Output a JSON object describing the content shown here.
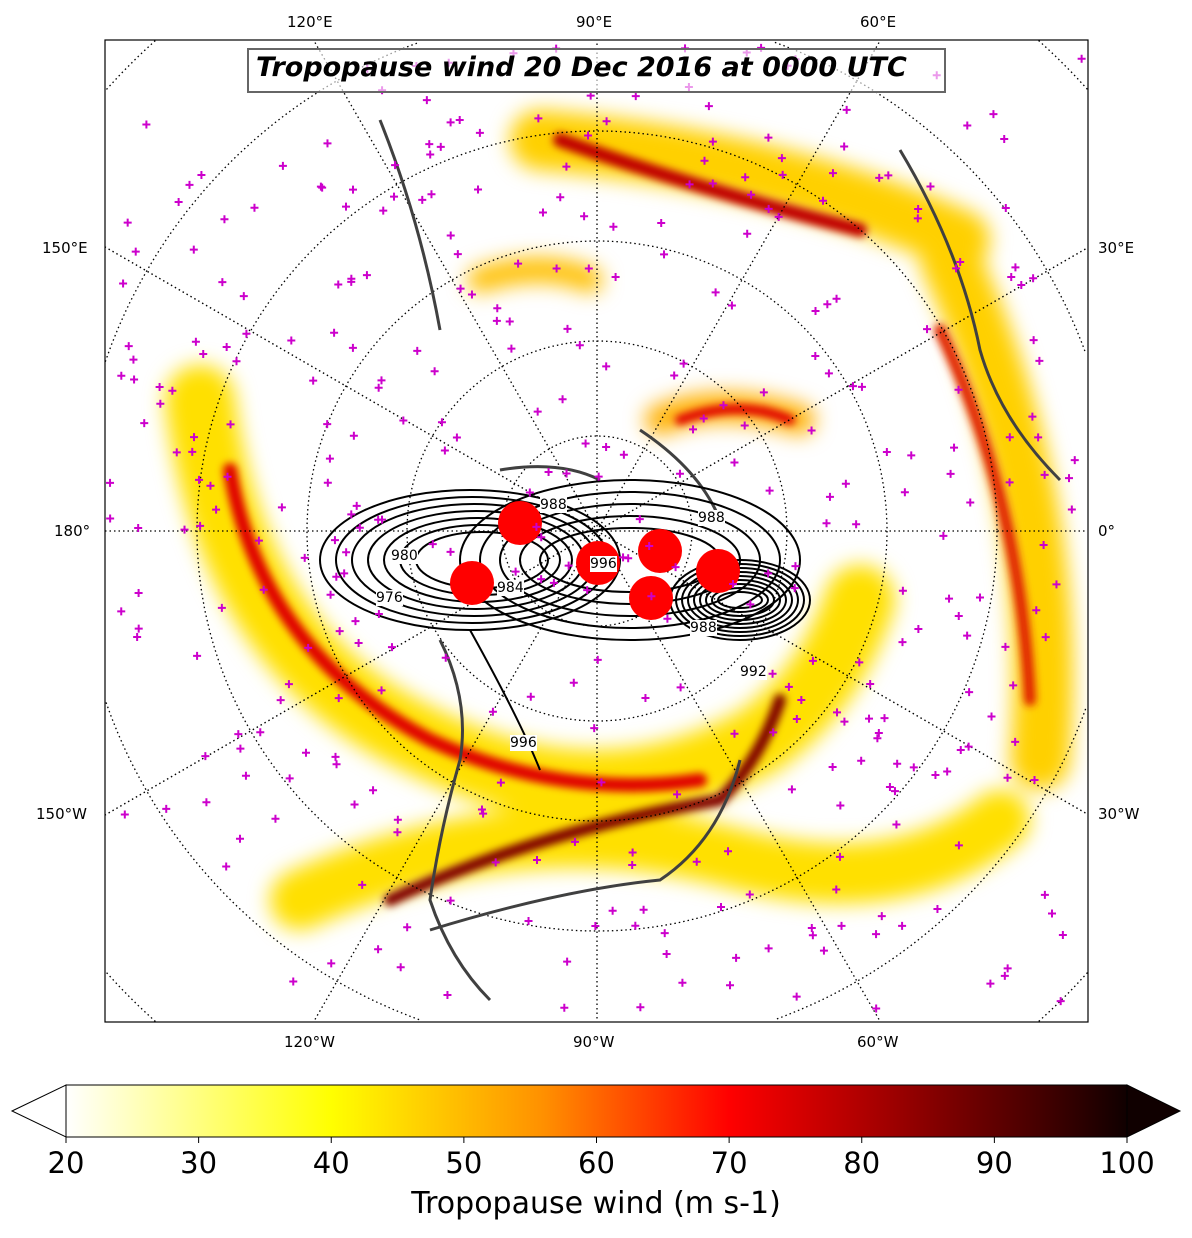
{
  "title": "Tropopause wind 20 Dec 2016 at 0000 UTC",
  "projection": "north-polar-stereographic",
  "meridian_labels": {
    "top": [
      "120°E",
      "90°E",
      "60°E"
    ],
    "bottom": [
      "120°W",
      "90°W",
      "60°W"
    ],
    "left": [
      "150°E",
      "180°",
      "150°W"
    ],
    "right": [
      "30°E",
      "0°",
      "30°W"
    ]
  },
  "contour_labels": [
    "988",
    "980",
    "976",
    "996",
    "984",
    "992",
    "988",
    "996",
    "988"
  ],
  "colorbar": {
    "label": "Tropopause wind (m s-1)",
    "ticks": [
      "20",
      "30",
      "40",
      "50",
      "60",
      "70",
      "80",
      "90",
      "100"
    ],
    "range": [
      20,
      100
    ],
    "extend": "both",
    "colormap": "hot_r",
    "colors": [
      "#ffffff",
      "#ffff00",
      "#ff8000",
      "#ff0000",
      "#800000",
      "#100000"
    ]
  },
  "colors": {
    "markers": "#cc00cc",
    "coastlines": "#404040",
    "cyclone_dots": "#ff0000",
    "contours": "#000000"
  }
}
